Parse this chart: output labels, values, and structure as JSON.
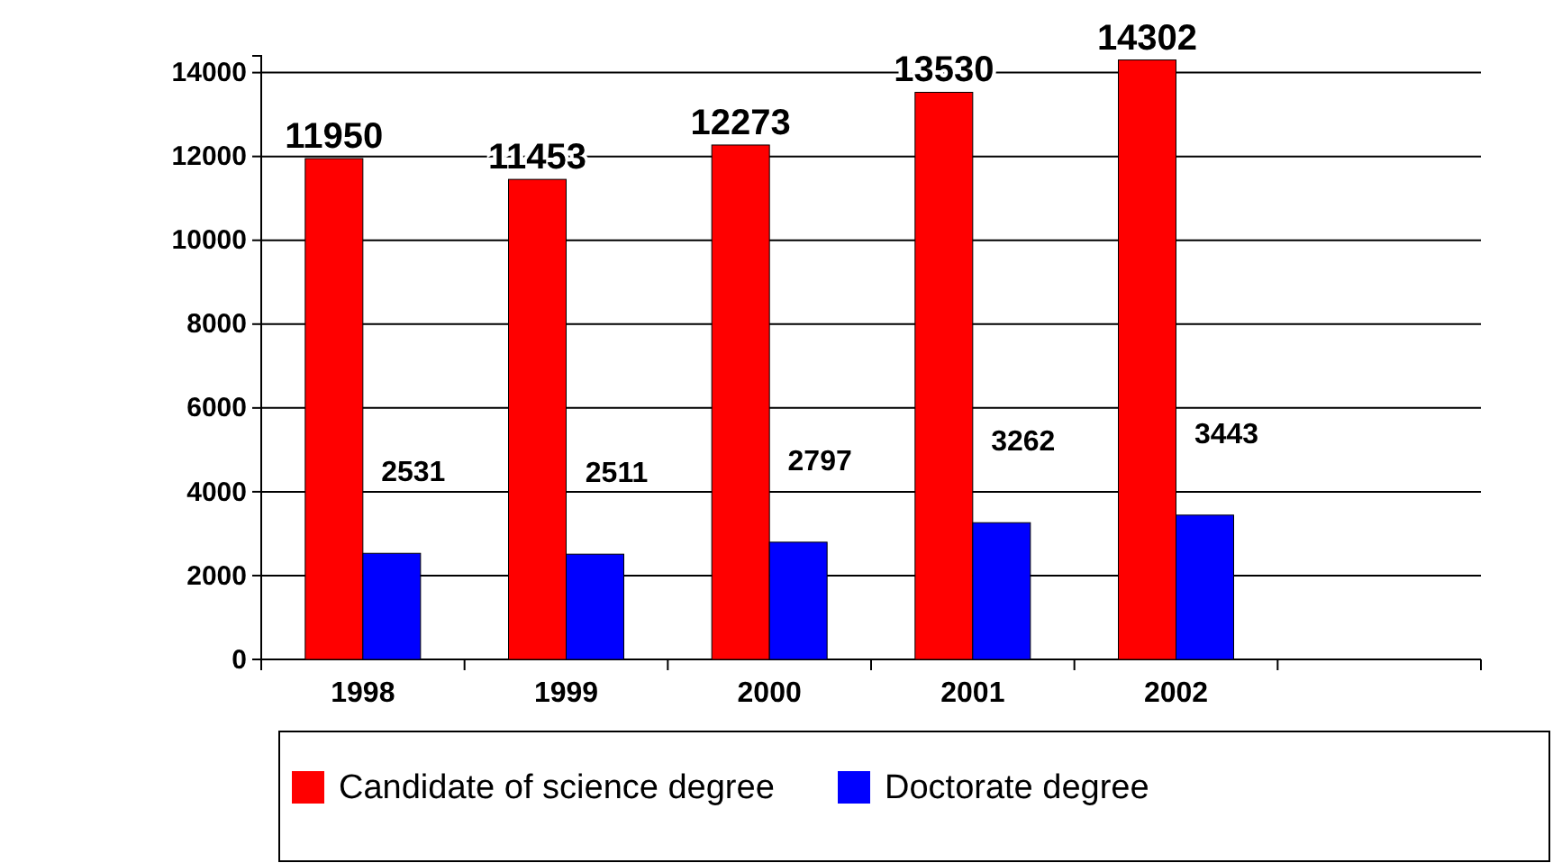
{
  "chart_data": {
    "type": "bar",
    "categories": [
      "1998",
      "1999",
      "2000",
      "2001",
      "2002",
      null
    ],
    "series": [
      {
        "name": "Candidate of science degree",
        "color": "#ff0000",
        "values": [
          11950,
          11453,
          12273,
          13530,
          14302,
          null
        ]
      },
      {
        "name": "Doctorate degree",
        "color": "#0000ff",
        "values": [
          2531,
          2511,
          2797,
          3262,
          3443,
          null
        ]
      }
    ],
    "ylim": [
      0,
      14400
    ],
    "yticks": [
      0,
      2000,
      4000,
      6000,
      8000,
      10000,
      12000,
      14000
    ],
    "grid": "y",
    "legend": "bottom",
    "data_labels": true
  }
}
